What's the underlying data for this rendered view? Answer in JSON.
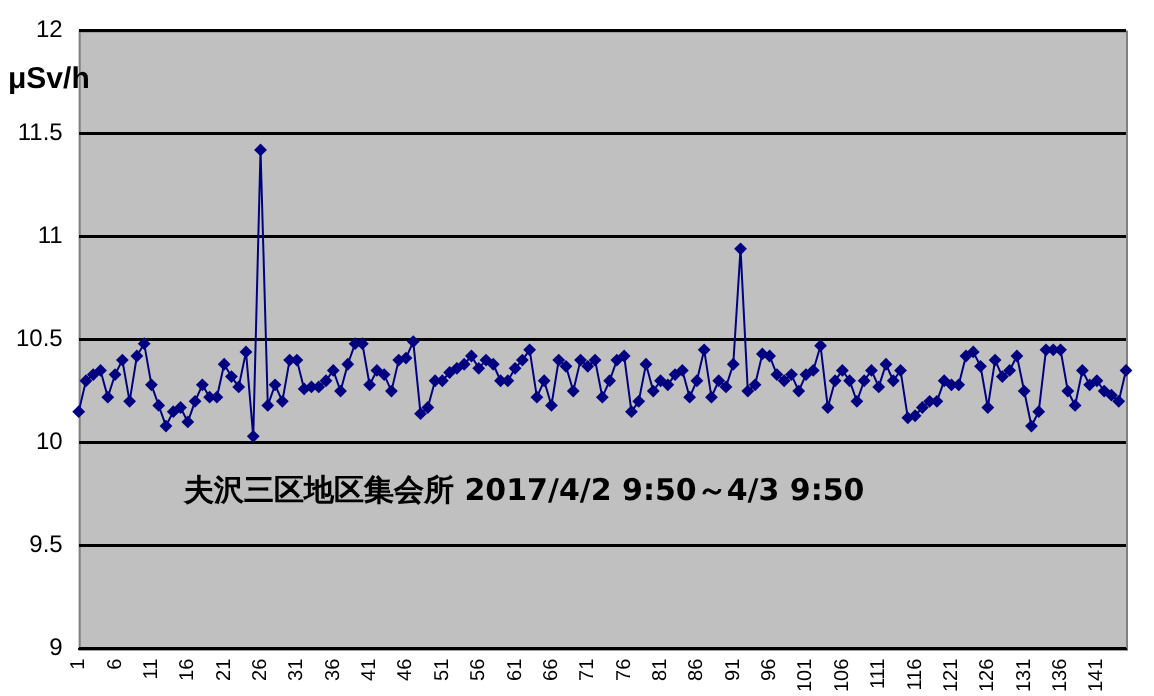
{
  "chart_data": {
    "type": "line",
    "ylabel": "μSv/h",
    "annotations": [
      "夫沢三区地区集会所 2017/4/2 9:50～4/3 9:50"
    ],
    "categories": [
      "1",
      null,
      null,
      null,
      null,
      "6",
      null,
      null,
      null,
      null,
      "11",
      null,
      null,
      null,
      null,
      "16",
      null,
      null,
      null,
      null,
      "21",
      null,
      null,
      null,
      null,
      "26",
      null,
      null,
      null,
      null,
      "31",
      null,
      null,
      null,
      null,
      "36",
      null,
      null,
      null,
      null,
      "41",
      null,
      null,
      null,
      null,
      "46",
      null,
      null,
      null,
      null,
      "51",
      null,
      null,
      null,
      null,
      "56",
      null,
      null,
      null,
      null,
      "61",
      null,
      null,
      null,
      null,
      "66",
      null,
      null,
      null,
      null,
      "71",
      null,
      null,
      null,
      null,
      "76",
      null,
      null,
      null,
      null,
      "81",
      null,
      null,
      null,
      null,
      "86",
      null,
      null,
      null,
      null,
      "91",
      null,
      null,
      null,
      null,
      "96",
      null,
      null,
      null,
      null,
      "101",
      null,
      null,
      null,
      null,
      "106",
      null,
      null,
      null,
      null,
      "111",
      null,
      null,
      null,
      null,
      "116",
      null,
      null,
      null,
      null,
      "121",
      null,
      null,
      null,
      null,
      "126",
      null,
      null,
      null,
      null,
      "131",
      null,
      null,
      null,
      null,
      "136",
      null,
      null,
      null,
      null,
      "141",
      null,
      null,
      null,
      null
    ],
    "series": [
      {
        "color": "#000080",
        "values": [
          10.15,
          10.3,
          10.33,
          10.35,
          10.22,
          10.33,
          10.4,
          10.2,
          10.42,
          10.48,
          10.28,
          10.18,
          10.08,
          10.15,
          10.17,
          10.1,
          10.2,
          10.28,
          10.22,
          10.22,
          10.38,
          10.32,
          10.27,
          10.44,
          10.03,
          11.42,
          10.18,
          10.28,
          10.2,
          10.4,
          10.4,
          10.26,
          10.27,
          10.27,
          10.3,
          10.35,
          10.25,
          10.38,
          10.48,
          10.48,
          10.28,
          10.35,
          10.33,
          10.25,
          10.4,
          10.41,
          10.49,
          10.14,
          10.17,
          10.3,
          10.3,
          10.34,
          10.36,
          10.38,
          10.42,
          10.36,
          10.4,
          10.38,
          10.3,
          10.3,
          10.36,
          10.4,
          10.45,
          10.22,
          10.3,
          10.18,
          10.4,
          10.37,
          10.25,
          10.4,
          10.37,
          10.4,
          10.22,
          10.3,
          10.4,
          10.42,
          10.15,
          10.2,
          10.38,
          10.25,
          10.3,
          10.28,
          10.33,
          10.35,
          10.22,
          10.3,
          10.45,
          10.22,
          10.3,
          10.27,
          10.38,
          10.94,
          10.25,
          10.28,
          10.43,
          10.42,
          10.33,
          10.3,
          10.33,
          10.25,
          10.33,
          10.35,
          10.47,
          10.17,
          10.3,
          10.35,
          10.3,
          10.2,
          10.3,
          10.35,
          10.27,
          10.38,
          10.3,
          10.35,
          10.12,
          10.13,
          10.17,
          10.2,
          10.2,
          10.3,
          10.28,
          10.28,
          10.42,
          10.44,
          10.37,
          10.17,
          10.4,
          10.32,
          10.35,
          10.42,
          10.25,
          10.08,
          10.15,
          10.45,
          10.45,
          10.45,
          10.25,
          10.18,
          10.35,
          10.28,
          10.3,
          10.25,
          10.23,
          10.2,
          10.35
        ]
      }
    ],
    "ylim": [
      9,
      12
    ],
    "yticks": [
      9,
      9.5,
      10,
      10.5,
      11,
      11.5,
      12
    ],
    "grid": "y",
    "legend": false,
    "marker": "diamond",
    "line_style": "solid"
  }
}
